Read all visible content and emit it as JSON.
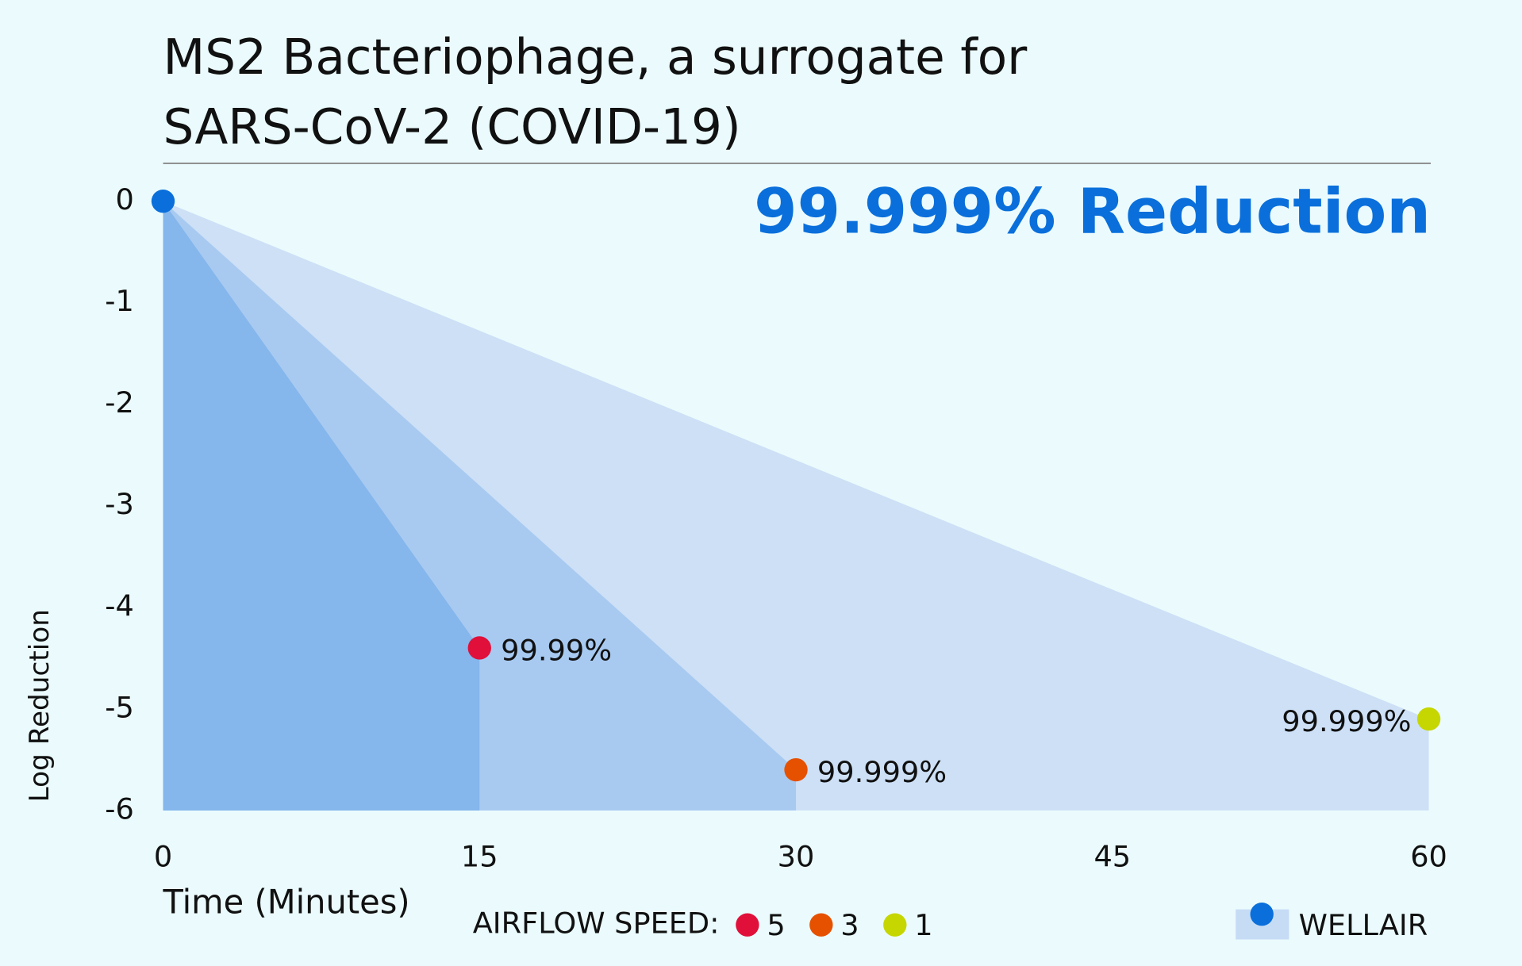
{
  "chart_data": {
    "type": "area",
    "title": [
      "MS2 Bacteriophage, a surrogate for",
      "SARS-CoV-2 (COVID-19)"
    ],
    "subtitle": "99.999% Reduction",
    "xlabel": "Time (Minutes)",
    "ylabel": "Log Reduction",
    "xlim": [
      0,
      60
    ],
    "xticks": [
      0,
      15,
      30,
      45,
      60
    ],
    "ylim": [
      -6,
      0
    ],
    "yticks": [
      0,
      -1,
      -2,
      -3,
      -4,
      -5,
      -6
    ],
    "legend_title": "AIRFLOW SPEED:",
    "series": [
      {
        "name": "1",
        "color": "#c6d600",
        "fill": "#cde0f6",
        "x": [
          0,
          60
        ],
        "values": [
          0,
          -5.1
        ],
        "annotation": "99.999%"
      },
      {
        "name": "3",
        "color": "#e65100",
        "fill": "#a8caf1",
        "x": [
          0,
          30
        ],
        "values": [
          0,
          -5.6
        ],
        "annotation": "99.999%"
      },
      {
        "name": "5",
        "color": "#e0103a",
        "fill": "#85b6ec",
        "x": [
          0,
          15
        ],
        "values": [
          0,
          -4.4
        ],
        "annotation": "99.99%"
      }
    ],
    "wellair": {
      "label": "WELLAIR",
      "color": "#0a6fdb",
      "fill": "#c6dcf5"
    }
  }
}
